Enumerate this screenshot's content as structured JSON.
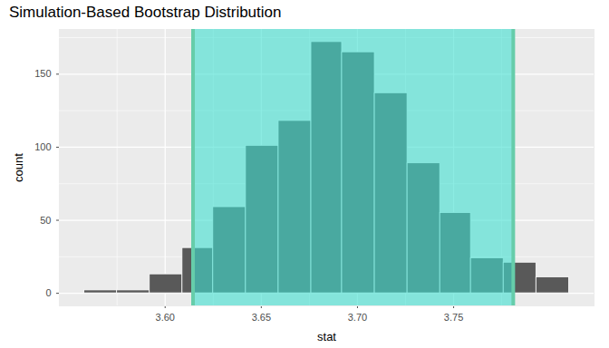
{
  "chart_data": {
    "type": "histogram",
    "title": "Simulation-Based Bootstrap Distribution",
    "x_label": "stat",
    "y_label": "count",
    "bins": [
      3.558,
      3.575,
      3.592,
      3.609,
      3.625,
      3.642,
      3.659,
      3.676,
      3.692,
      3.709,
      3.726,
      3.743,
      3.759,
      3.776,
      3.793,
      3.81
    ],
    "counts": [
      2,
      2,
      13,
      31,
      59,
      101,
      118,
      172,
      165,
      137,
      89,
      55,
      24,
      21,
      11
    ],
    "color": "#595959",
    "ci": {
      "lower": 3.6145,
      "upper": 3.781,
      "color": "#40e0d0"
    },
    "xlim": [
      3.545,
      3.823
    ],
    "xticks": [
      {
        "value": 3.6,
        "label": "3.60"
      },
      {
        "value": 3.65,
        "label": "3.65"
      },
      {
        "value": 3.7,
        "label": "3.70"
      },
      {
        "value": 3.75,
        "label": "3.75"
      }
    ],
    "ylim": [
      -8.6,
      180.6
    ],
    "yticks": [
      0,
      50,
      100,
      150
    ],
    "grid": true
  }
}
